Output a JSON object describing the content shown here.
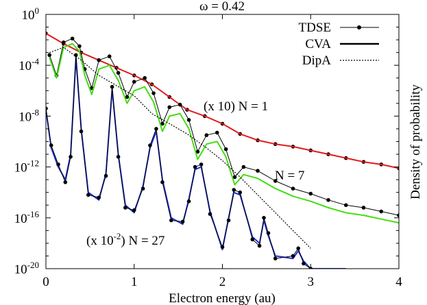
{
  "chart_data": {
    "type": "line",
    "title": "ω = 0.42",
    "xlabel": "Electron energy (au)",
    "ylabel": "Density of probability",
    "xlim": [
      0,
      4
    ],
    "ylim_log10": [
      -20,
      0
    ],
    "yscale": "log",
    "x_ticks": [
      "0",
      "1",
      "2",
      "3",
      "4"
    ],
    "y_ticks": [
      {
        "base": "10",
        "exp": "0"
      },
      {
        "base": "10",
        "exp": "-4"
      },
      {
        "base": "10",
        "exp": "-8"
      },
      {
        "base": "10",
        "exp": "-12"
      },
      {
        "base": "10",
        "exp": "-16"
      },
      {
        "base": "10",
        "exp": "-20"
      }
    ],
    "legend": {
      "placement": "top-right",
      "entries": [
        {
          "label": "TDSE",
          "style": "thin line with dot markers"
        },
        {
          "label": "CVA",
          "style": "thick solid line"
        },
        {
          "label": "DipA",
          "style": "dotted line"
        }
      ]
    },
    "annotations": [
      {
        "text": "(x 10) N = 1"
      },
      {
        "text": "N = 7"
      },
      {
        "prefix": "(x 10",
        "exp": "-2",
        "suffix": ") N = 27"
      }
    ],
    "series": [
      {
        "group": "N = 1",
        "kind": "TDSE",
        "color": "#000000",
        "x": [
          0.0,
          0.2,
          0.4,
          0.6,
          0.8,
          1.0,
          1.2,
          1.4,
          1.6,
          1.8,
          2.0,
          2.2,
          2.4,
          2.6,
          2.8,
          3.0,
          3.2,
          3.4,
          3.6,
          3.8,
          4.0
        ],
        "y_log10": [
          -1.5,
          -2.3,
          -3.0,
          -3.6,
          -4.2,
          -4.8,
          -5.5,
          -6.5,
          -7.5,
          -8.0,
          -8.6,
          -9.4,
          -9.9,
          -10.2,
          -10.4,
          -10.7,
          -11.0,
          -11.3,
          -11.6,
          -11.8,
          -12.1
        ]
      },
      {
        "group": "N = 1",
        "kind": "CVA",
        "color": "#e41a1c",
        "x": [
          0.0,
          0.2,
          0.4,
          0.6,
          0.8,
          1.0,
          1.2,
          1.4,
          1.6,
          1.8,
          2.0,
          2.2,
          2.4,
          2.6,
          2.8,
          3.0,
          3.2,
          3.4,
          3.6,
          3.8,
          4.0
        ],
        "y_log10": [
          -1.5,
          -2.3,
          -3.0,
          -3.6,
          -4.2,
          -4.8,
          -5.5,
          -6.5,
          -7.5,
          -8.0,
          -8.6,
          -9.4,
          -9.9,
          -10.2,
          -10.4,
          -10.7,
          -11.0,
          -11.3,
          -11.6,
          -11.8,
          -12.1
        ]
      },
      {
        "group": "N = 7",
        "kind": "TDSE",
        "color": "#000000",
        "x": [
          0.04,
          0.12,
          0.2,
          0.3,
          0.38,
          0.44,
          0.52,
          0.6,
          0.72,
          0.82,
          0.92,
          1.0,
          1.12,
          1.22,
          1.32,
          1.4,
          1.52,
          1.62,
          1.72,
          1.82,
          1.94,
          2.04,
          2.14,
          2.24,
          2.4,
          2.6,
          2.8,
          3.0,
          3.2,
          3.4,
          3.6,
          3.8,
          4.0
        ],
        "y_log10": [
          -3.2,
          -4.8,
          -2.2,
          -1.9,
          -2.5,
          -4.3,
          -5.8,
          -3.6,
          -3.3,
          -4.6,
          -6.5,
          -5.3,
          -5.0,
          -6.2,
          -8.6,
          -7.3,
          -7.1,
          -8.3,
          -10.8,
          -9.5,
          -9.3,
          -10.6,
          -12.8,
          -12.0,
          -12.3,
          -13.1,
          -13.7,
          -14.1,
          -14.6,
          -15.0,
          -15.2,
          -15.5,
          -15.8
        ]
      },
      {
        "group": "N = 7",
        "kind": "CVA",
        "color": "#44dd11",
        "x": [
          0.04,
          0.12,
          0.2,
          0.3,
          0.38,
          0.44,
          0.52,
          0.6,
          0.72,
          0.82,
          0.92,
          1.0,
          1.12,
          1.22,
          1.32,
          1.4,
          1.52,
          1.62,
          1.72,
          1.82,
          1.94,
          2.04,
          2.14,
          2.24,
          2.4,
          2.6,
          2.8,
          3.0,
          3.2,
          3.4,
          3.6,
          3.8,
          4.0
        ],
        "y_log10": [
          -3.4,
          -5.0,
          -2.6,
          -2.3,
          -2.9,
          -4.8,
          -6.3,
          -4.3,
          -4.0,
          -5.2,
          -7.0,
          -6.0,
          -5.7,
          -6.9,
          -9.2,
          -8.0,
          -7.8,
          -9.0,
          -11.4,
          -10.2,
          -10.0,
          -11.2,
          -13.4,
          -12.6,
          -12.9,
          -13.7,
          -14.3,
          -14.7,
          -15.2,
          -15.6,
          -15.8,
          -16.1,
          -16.4
        ]
      },
      {
        "group": "N = 7",
        "kind": "DipA",
        "color": "#000000",
        "x": [
          0.04,
          0.2,
          0.4,
          0.6,
          0.8,
          1.0,
          1.2,
          1.4,
          1.6,
          1.8,
          2.0,
          2.2,
          2.4,
          2.6,
          2.8,
          3.0
        ],
        "y_log10": [
          -3.0,
          -2.6,
          -3.6,
          -4.8,
          -5.6,
          -6.4,
          -7.8,
          -8.6,
          -9.4,
          -10.4,
          -11.5,
          -12.8,
          -14.2,
          -15.6,
          -17.0,
          -18.4
        ]
      },
      {
        "group": "N = 27",
        "kind": "CVA",
        "color": "#1f2fd6",
        "x": [
          0.0,
          0.06,
          0.14,
          0.22,
          0.28,
          0.34,
          0.4,
          0.48,
          0.6,
          0.68,
          0.75,
          0.82,
          0.9,
          1.0,
          1.1,
          1.18,
          1.25,
          1.32,
          1.42,
          1.55,
          1.62,
          1.69,
          1.76,
          1.86,
          2.0,
          2.07,
          2.13,
          2.2,
          2.34,
          2.42,
          2.47,
          2.52,
          2.6,
          2.8,
          2.86,
          2.92,
          3.0,
          3.2,
          3.4
        ],
        "y_log10": [
          -7.5,
          -10.5,
          -12.0,
          -13.0,
          -11.0,
          -3.4,
          -9.0,
          -14.0,
          -14.6,
          -12.5,
          -5.9,
          -11.0,
          -15.0,
          -15.6,
          -13.5,
          -10.5,
          -9.2,
          -13.0,
          -16.0,
          -16.5,
          -14.5,
          -12.2,
          -12.0,
          -15.5,
          -18.5,
          -16.0,
          -14.0,
          -14.2,
          -17.5,
          -18.0,
          -16.2,
          -17.4,
          -19.0,
          -19.2,
          -18.6,
          -19.4,
          -20.0,
          -20.0,
          -20.0
        ]
      },
      {
        "group": "N = 27",
        "kind": "TDSE",
        "color": "#000000",
        "x": [
          0.0,
          0.06,
          0.14,
          0.22,
          0.28,
          0.34,
          0.4,
          0.48,
          0.6,
          0.68,
          0.75,
          0.82,
          0.9,
          1.0,
          1.1,
          1.18,
          1.25,
          1.32,
          1.42,
          1.55,
          1.62,
          1.69,
          1.76,
          1.86,
          2.0,
          2.07,
          2.13,
          2.2,
          2.34,
          2.42,
          2.47,
          2.52,
          2.6,
          2.8,
          2.86,
          2.92,
          3.0
        ],
        "y_log10": [
          -7.4,
          -10.3,
          -11.8,
          -13.2,
          -11.2,
          -3.2,
          -9.2,
          -14.2,
          -14.4,
          -12.7,
          -5.7,
          -11.2,
          -15.2,
          -15.4,
          -13.7,
          -10.3,
          -9.0,
          -13.2,
          -16.2,
          -16.3,
          -14.7,
          -12.0,
          -11.8,
          -15.7,
          -18.3,
          -16.2,
          -13.8,
          -14.0,
          -17.7,
          -18.2,
          -16.0,
          -17.2,
          -19.2,
          -19.0,
          -18.4,
          -19.6,
          -20.0
        ]
      }
    ]
  }
}
